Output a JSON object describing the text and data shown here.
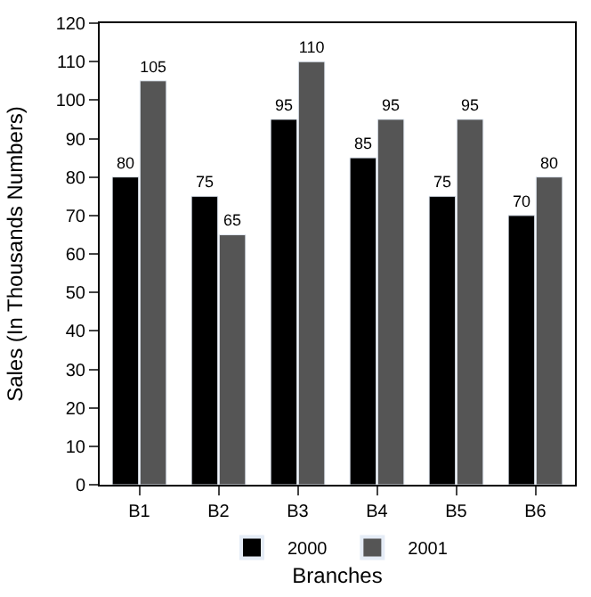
{
  "chart_data": {
    "type": "bar",
    "xlabel": "Branches",
    "ylabel": "Sales (In Thousands Numbers)",
    "categories": [
      "B1",
      "B2",
      "B3",
      "B4",
      "B5",
      "B6"
    ],
    "series": [
      {
        "name": "2000",
        "color": "#000000",
        "values": [
          80,
          75,
          95,
          85,
          75,
          70
        ]
      },
      {
        "name": "2001",
        "color": "#555555",
        "values": [
          105,
          65,
          110,
          95,
          95,
          80
        ]
      }
    ],
    "ylim": [
      0,
      120
    ],
    "yticks": [
      0,
      10,
      20,
      30,
      40,
      50,
      60,
      70,
      80,
      90,
      100,
      110,
      120
    ],
    "data_labels": true,
    "legend": "bottom"
  }
}
